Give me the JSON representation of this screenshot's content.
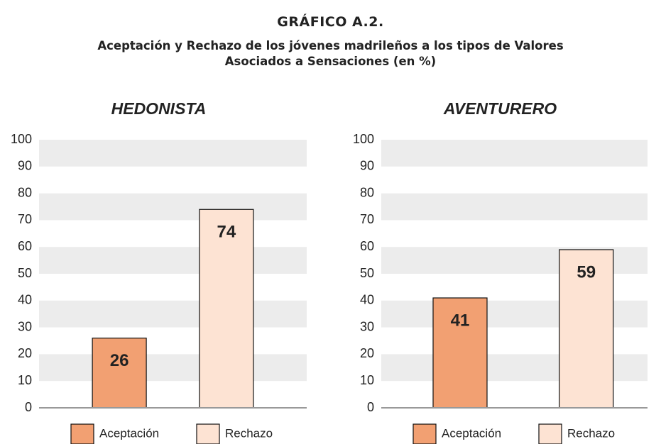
{
  "header": {
    "title": "GRÁFICO A.2.",
    "subtitle": "Aceptación y Rechazo de los jóvenes madrileños a los tipos de Valores Asociados a Sensaciones (en %)"
  },
  "chart_data": [
    {
      "type": "bar",
      "title": "HEDONISTA",
      "categories": [
        "Aceptación",
        "Rechazo"
      ],
      "values": [
        26,
        74
      ],
      "colors": [
        "#f2a072",
        "#fde3d3"
      ],
      "ylim": [
        0,
        100
      ],
      "yticks": [
        0,
        10,
        20,
        30,
        40,
        50,
        60,
        70,
        80,
        90,
        100
      ],
      "grid": true,
      "legend": "bottom"
    },
    {
      "type": "bar",
      "title": "AVENTURERO",
      "categories": [
        "Aceptación",
        "Rechazo"
      ],
      "values": [
        41,
        59
      ],
      "colors": [
        "#f2a072",
        "#fde3d3"
      ],
      "ylim": [
        0,
        100
      ],
      "yticks": [
        0,
        10,
        20,
        30,
        40,
        50,
        60,
        70,
        80,
        90,
        100
      ],
      "grid": true,
      "legend": "bottom"
    }
  ]
}
